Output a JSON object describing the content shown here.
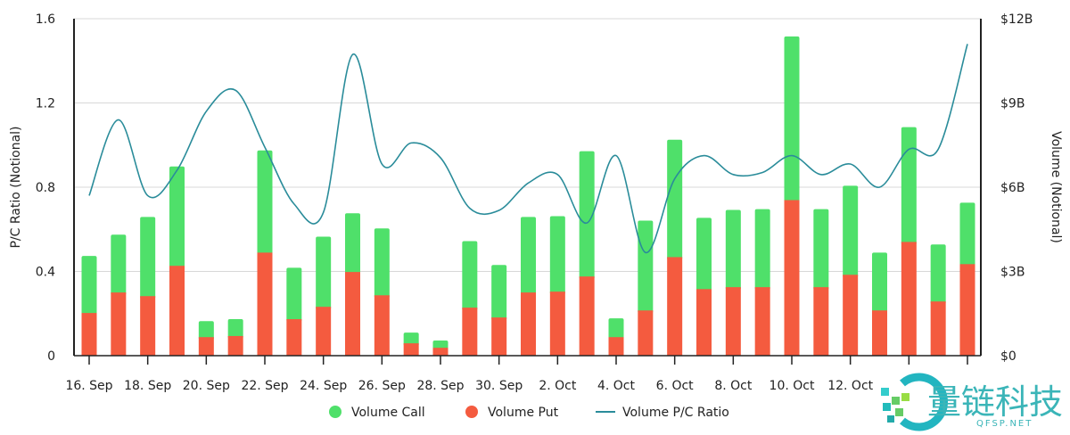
{
  "chart_data": {
    "type": "bar",
    "title": "",
    "ylabel_left": "P/C Ratio (Notional)",
    "ylabel_right": "Volume (Notional)",
    "y_left_range": [
      0,
      1.6
    ],
    "y_left_ticks": [
      "0",
      "0.4",
      "0.8",
      "1.2",
      "1.6"
    ],
    "y_right_range": [
      0,
      12
    ],
    "y_right_ticks": [
      "$0",
      "$3B",
      "$6B",
      "$9B",
      "$12B"
    ],
    "x_tick_labels": [
      "16. Sep",
      "18. Sep",
      "20. Sep",
      "22. Sep",
      "24. Sep",
      "26. Sep",
      "28. Sep",
      "30. Sep",
      "2. Oct",
      "4. Oct",
      "6. Oct",
      "8. Oct",
      "10. Oct",
      "12. Oct",
      "",
      ""
    ],
    "categories": [
      "16 Sep",
      "17 Sep",
      "18 Sep",
      "19 Sep",
      "20 Sep",
      "21 Sep",
      "22 Sep",
      "23 Sep",
      "24 Sep",
      "25 Sep",
      "26 Sep",
      "27 Sep",
      "28 Sep",
      "29 Sep",
      "30 Sep",
      "1 Oct",
      "2 Oct",
      "3 Oct",
      "4 Oct",
      "5 Oct",
      "6 Oct",
      "7 Oct",
      "8 Oct",
      "9 Oct",
      "10 Oct",
      "11 Oct",
      "12 Oct",
      "13 Oct",
      "14 Oct",
      "15 Oct",
      "16 Oct"
    ],
    "grid": true,
    "legend_position": "bottom",
    "series": [
      {
        "name": "Volume Call",
        "type": "stacked-bar",
        "axis": "right",
        "unit": "$B",
        "color": "#4fe06a",
        "values": [
          2.03,
          2.06,
          2.82,
          3.54,
          0.57,
          0.6,
          3.64,
          1.83,
          2.5,
          2.09,
          2.38,
          0.38,
          0.26,
          2.37,
          1.87,
          2.69,
          2.69,
          4.46,
          0.67,
          3.2,
          4.18,
          2.54,
          2.75,
          2.78,
          5.83,
          2.78,
          3.17,
          2.06,
          4.09,
          2.03,
          2.19
        ]
      },
      {
        "name": "Volume Put",
        "type": "stacked-bar",
        "axis": "right",
        "unit": "$B",
        "color": "#f45b3f",
        "values": [
          1.52,
          2.25,
          2.12,
          3.2,
          0.66,
          0.7,
          3.67,
          1.3,
          1.74,
          2.98,
          2.15,
          0.44,
          0.28,
          1.71,
          1.36,
          2.25,
          2.28,
          2.82,
          0.66,
          1.61,
          3.51,
          2.37,
          2.44,
          2.44,
          5.54,
          2.44,
          2.88,
          1.61,
          4.05,
          1.93,
          3.26
        ]
      },
      {
        "name": "Volume P/C Ratio",
        "type": "line",
        "axis": "left",
        "color": "#2a8c9a",
        "values": [
          0.76,
          1.12,
          0.76,
          0.88,
          1.16,
          1.26,
          0.99,
          0.72,
          0.68,
          1.43,
          0.91,
          1.01,
          0.94,
          0.7,
          0.69,
          0.82,
          0.86,
          0.63,
          0.95,
          0.49,
          0.84,
          0.95,
          0.86,
          0.87,
          0.95,
          0.86,
          0.91,
          0.8,
          0.98,
          0.98,
          1.48
        ]
      }
    ]
  },
  "watermark": {
    "text": "量链科技",
    "subtext": "QFSP.NET"
  }
}
